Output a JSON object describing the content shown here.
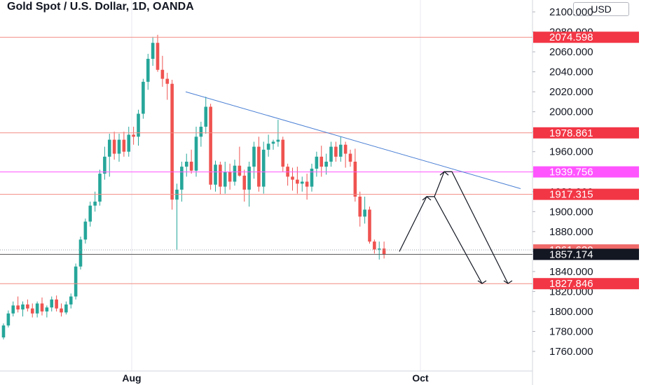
{
  "title": "Gold Spot / U.S. Dollar, 1D, OANDA",
  "currency": "USD",
  "colors": {
    "up": "#26a69a",
    "down": "#ef5350",
    "hline": "#f28b82",
    "magenta": "#ff55ff",
    "trend": "#4a7fd4",
    "arrow": "#131722",
    "axis_text": "#131722",
    "grid": "#e8eaf0",
    "price_tag_red": "#f23645",
    "price_tag_dark": "#131722",
    "price_tag_magenta": "#ff55ff",
    "price_tag_light": "#f06a6a"
  },
  "chart_data": {
    "type": "candlestick",
    "symbol": "Gold Spot / U.S. Dollar",
    "interval": "1D",
    "source": "OANDA",
    "y_ticks": [
      "1760.000",
      "1780.000",
      "1800.000",
      "1820.000",
      "1840.000",
      "1860.000",
      "1880.000",
      "1900.000",
      "1920.000",
      "1940.000",
      "1960.000",
      "1980.000",
      "2000.000",
      "2020.000",
      "2040.000",
      "2060.000",
      "2080.000",
      "2100.000"
    ],
    "x_ticks": [
      "Aug",
      "Oct"
    ],
    "ylim": [
      1753,
      2100
    ],
    "candles": [
      [
        1774,
        1788,
        1772,
        1786
      ],
      [
        1786,
        1801,
        1784,
        1798
      ],
      [
        1798,
        1810,
        1795,
        1806
      ],
      [
        1806,
        1815,
        1799,
        1802
      ],
      [
        1802,
        1810,
        1795,
        1807
      ],
      [
        1807,
        1812,
        1800,
        1803
      ],
      [
        1803,
        1808,
        1794,
        1798
      ],
      [
        1798,
        1810,
        1794,
        1808
      ],
      [
        1808,
        1814,
        1796,
        1800
      ],
      [
        1800,
        1806,
        1794,
        1804
      ],
      [
        1804,
        1815,
        1800,
        1812
      ],
      [
        1812,
        1816,
        1800,
        1803
      ],
      [
        1803,
        1808,
        1795,
        1799
      ],
      [
        1799,
        1810,
        1797,
        1807
      ],
      [
        1807,
        1818,
        1803,
        1815
      ],
      [
        1815,
        1848,
        1812,
        1845
      ],
      [
        1845,
        1875,
        1842,
        1872
      ],
      [
        1872,
        1893,
        1868,
        1890
      ],
      [
        1890,
        1910,
        1885,
        1906
      ],
      [
        1906,
        1920,
        1900,
        1910
      ],
      [
        1910,
        1942,
        1906,
        1938
      ],
      [
        1938,
        1965,
        1932,
        1955
      ],
      [
        1955,
        1978,
        1935,
        1972
      ],
      [
        1972,
        1980,
        1952,
        1958
      ],
      [
        1958,
        1978,
        1950,
        1972
      ],
      [
        1972,
        1980,
        1955,
        1960
      ],
      [
        1960,
        1985,
        1955,
        1977
      ],
      [
        1977,
        1985,
        1967,
        1975
      ],
      [
        1975,
        2002,
        1966,
        1998
      ],
      [
        1998,
        2033,
        1993,
        2030
      ],
      [
        2030,
        2058,
        2022,
        2053
      ],
      [
        2053,
        2075,
        2046,
        2069
      ],
      [
        2069,
        2077,
        2040,
        2042
      ],
      [
        2042,
        2056,
        2025,
        2033
      ],
      [
        2033,
        2039,
        2012,
        2028
      ],
      [
        2028,
        2032,
        1902,
        1912
      ],
      [
        1912,
        1928,
        1862,
        1922
      ],
      [
        1922,
        1950,
        1910,
        1945
      ],
      [
        1945,
        1958,
        1935,
        1950
      ],
      [
        1950,
        1962,
        1938,
        1941
      ],
      [
        1941,
        1985,
        1935,
        1975
      ],
      [
        1975,
        1990,
        1965,
        1985
      ],
      [
        1985,
        2015,
        1978,
        2005
      ],
      [
        2005,
        2008,
        1922,
        1927
      ],
      [
        1927,
        1951,
        1920,
        1947
      ],
      [
        1947,
        1950,
        1917,
        1925
      ],
      [
        1925,
        1950,
        1918,
        1940
      ],
      [
        1940,
        1948,
        1922,
        1930
      ],
      [
        1930,
        1952,
        1926,
        1946
      ],
      [
        1946,
        1965,
        1935,
        1936
      ],
      [
        1936,
        1942,
        1910,
        1922
      ],
      [
        1922,
        1950,
        1905,
        1945
      ],
      [
        1945,
        1970,
        1933,
        1965
      ],
      [
        1965,
        1975,
        1920,
        1925
      ],
      [
        1925,
        1970,
        1918,
        1962
      ],
      [
        1962,
        1977,
        1955,
        1968
      ],
      [
        1968,
        1972,
        1962,
        1970
      ],
      [
        1970,
        1992,
        1965,
        1972
      ],
      [
        1972,
        1975,
        1940,
        1945
      ],
      [
        1945,
        1948,
        1926,
        1935
      ],
      [
        1935,
        1944,
        1921,
        1932
      ],
      [
        1932,
        1945,
        1918,
        1928
      ],
      [
        1928,
        1935,
        1920,
        1930
      ],
      [
        1930,
        1938,
        1912,
        1925
      ],
      [
        1925,
        1948,
        1920,
        1943
      ],
      [
        1943,
        1960,
        1935,
        1955
      ],
      [
        1955,
        1966,
        1935,
        1945
      ],
      [
        1945,
        1958,
        1937,
        1950
      ],
      [
        1950,
        1970,
        1945,
        1965
      ],
      [
        1965,
        1970,
        1950,
        1955
      ],
      [
        1955,
        1975,
        1950,
        1967
      ],
      [
        1967,
        1970,
        1944,
        1958
      ],
      [
        1958,
        1962,
        1945,
        1950
      ],
      [
        1950,
        1963,
        1910,
        1915
      ],
      [
        1915,
        1920,
        1885,
        1895
      ],
      [
        1895,
        1915,
        1888,
        1902
      ],
      [
        1902,
        1905,
        1868,
        1870
      ],
      [
        1870,
        1872,
        1858,
        1862
      ],
      [
        1862,
        1870,
        1852,
        1863
      ],
      [
        1863,
        1870,
        1853,
        1857
      ]
    ],
    "horizontal_lines": [
      {
        "price": 2074.598,
        "label": "2074.598",
        "style": "red"
      },
      {
        "price": 1978.861,
        "label": "1978.861",
        "style": "red"
      },
      {
        "price": 1939.756,
        "label": "1939.756",
        "style": "magenta"
      },
      {
        "price": 1917.315,
        "label": "1917.315",
        "style": "red"
      },
      {
        "price": 1861.62,
        "label": "1861.620",
        "style": "light"
      },
      {
        "price": 1857.174,
        "label": "1857.174",
        "style": "dark"
      },
      {
        "price": 1827.846,
        "label": "1827.846",
        "style": "red"
      }
    ]
  }
}
